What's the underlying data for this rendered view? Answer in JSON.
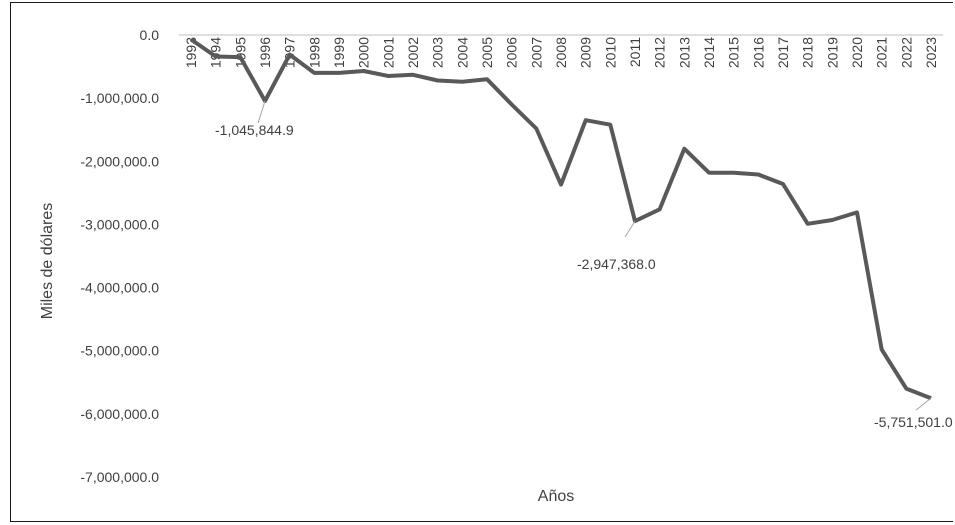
{
  "chart_data": {
    "type": "line",
    "xlabel": "Años",
    "ylabel": "Miles de dólares",
    "ylim": [
      -7000000,
      0
    ],
    "yticks": [
      "0.0",
      "-1,000,000.0",
      "-2,000,000.0",
      "-3,000,000.0",
      "-4,000,000.0",
      "-5,000,000.0",
      "-6,000,000.0",
      "-7,000,000.0"
    ],
    "categories": [
      "1993",
      "1994",
      "1995",
      "1996",
      "1997",
      "1998",
      "1999",
      "2000",
      "2001",
      "2002",
      "2003",
      "2004",
      "2005",
      "2006",
      "2007",
      "2008",
      "2009",
      "2010",
      "2011",
      "2012",
      "2013",
      "2014",
      "2015",
      "2016",
      "2017",
      "2018",
      "2019",
      "2020",
      "2021",
      "2022",
      "2023"
    ],
    "series": [
      {
        "values": [
          -70000,
          -340000,
          -350000,
          -1045844.9,
          -310000,
          -600000,
          -600000,
          -570000,
          -650000,
          -630000,
          -720000,
          -740000,
          -700000,
          -1100000,
          -1480000,
          -2370000,
          -1350000,
          -1420000,
          -2947368.0,
          -2760000,
          -1800000,
          -2180000,
          -2180000,
          -2210000,
          -2360000,
          -2990000,
          -2930000,
          -2810000,
          -4980000,
          -5600000,
          -5751501.0
        ],
        "color": "#595959"
      }
    ],
    "annotations": [
      {
        "index": 3,
        "text": "-1,045,844.9"
      },
      {
        "index": 18,
        "text": "-2,947,368.0"
      },
      {
        "index": 30,
        "text": "-5,751,501.0"
      }
    ],
    "grid": false,
    "legend": "none"
  }
}
